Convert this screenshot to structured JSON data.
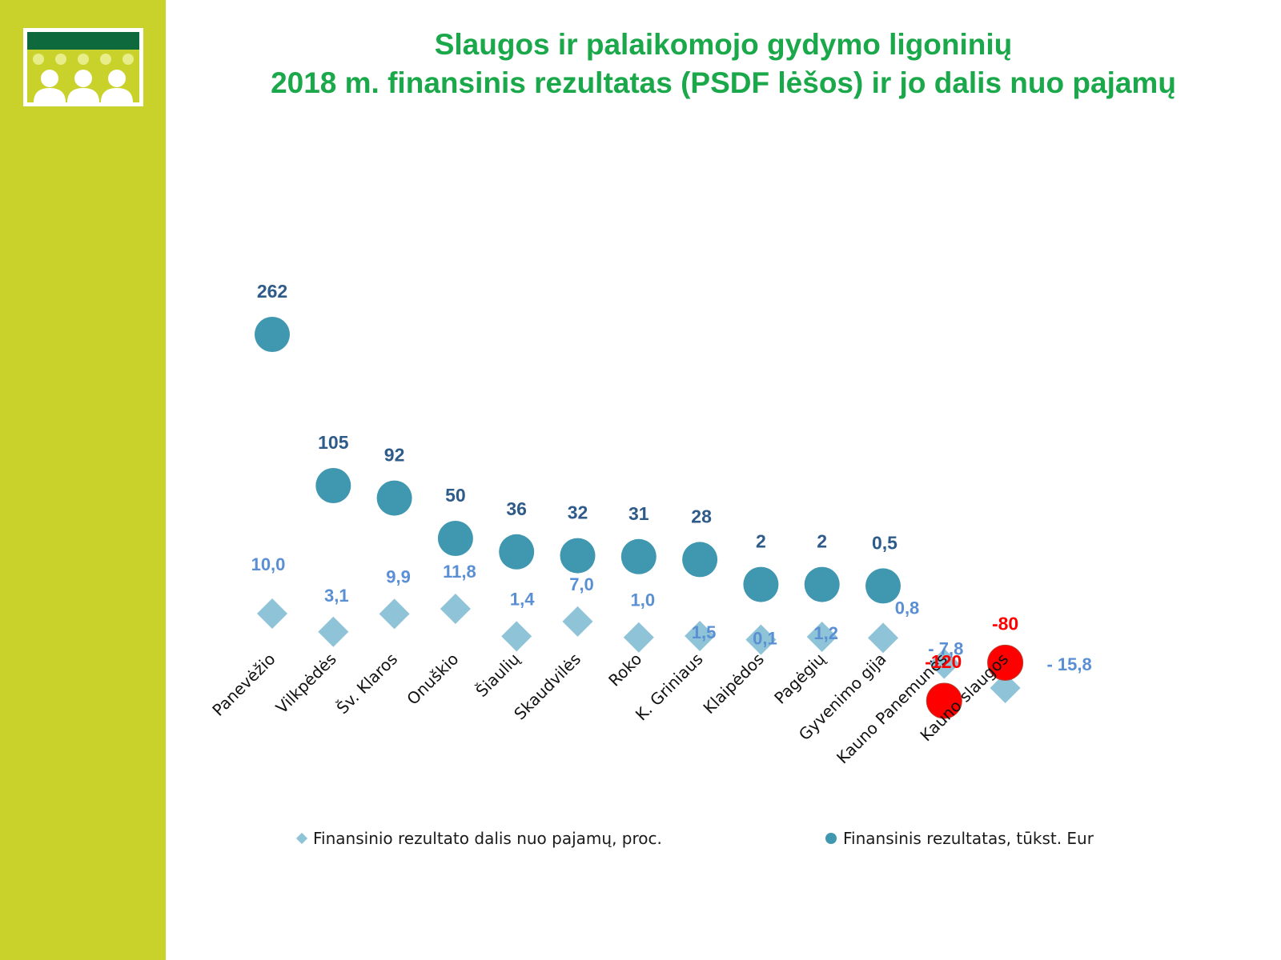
{
  "title": {
    "line1": "Slaugos ir palaikomojo gydymo ligoninių",
    "line2": "2018 m. finansinis rezultatas (PSDF lėšos) ir jo dalis nuo pajamų"
  },
  "colors": {
    "sidebar": "#c8d22a",
    "title": "#1aa84a",
    "circle": "#3f97b0",
    "circle_label": "#2e5b8a",
    "diamond": "#8ec3d8",
    "diamond_label": "#5a8fd4",
    "negative": "#ff0000"
  },
  "legend": {
    "series1": "Finansinio rezultato dalis nuo pajamų, proc.",
    "series2": "Finansinis rezultatas, tūkst. Eur"
  },
  "chart_data": {
    "type": "scatter",
    "categories": [
      "Panevėžio",
      "Vilkpėdės",
      "Šv. Klaros",
      "Onuškio",
      "Šiaulių",
      "Skaudvilės",
      "Roko",
      "K. Griniaus",
      "Klaipėdos",
      "Pagėgių",
      "Gyvenimo gija",
      "Kauno Panemunės",
      "Kauno slaugos"
    ],
    "series": [
      {
        "name": "Finansinio rezultato dalis nuo pajamų, proc.",
        "marker": "diamond",
        "values": [
          10.0,
          3.1,
          9.9,
          11.8,
          1.4,
          7.0,
          1.0,
          1.5,
          0.1,
          1.2,
          0.8,
          -7.8,
          -15.8
        ],
        "labels": [
          "10,0",
          "3,1",
          "9,9",
          "11,8",
          "1,4",
          "7,0",
          "1,0",
          "1,5",
          "0,1",
          "1,2",
          "0,8",
          "- 7,8",
          "- 15,8"
        ]
      },
      {
        "name": "Finansinis rezultatas, tūkst. Eur",
        "marker": "circle",
        "values": [
          262,
          105,
          92,
          50,
          36,
          32,
          31,
          28,
          2,
          2,
          0.5,
          -120,
          -80
        ],
        "labels": [
          "262",
          "105",
          "92",
          "50",
          "36",
          "32",
          "31",
          "28",
          "2",
          "2",
          "0,5",
          "-120",
          "-80"
        ]
      }
    ]
  }
}
